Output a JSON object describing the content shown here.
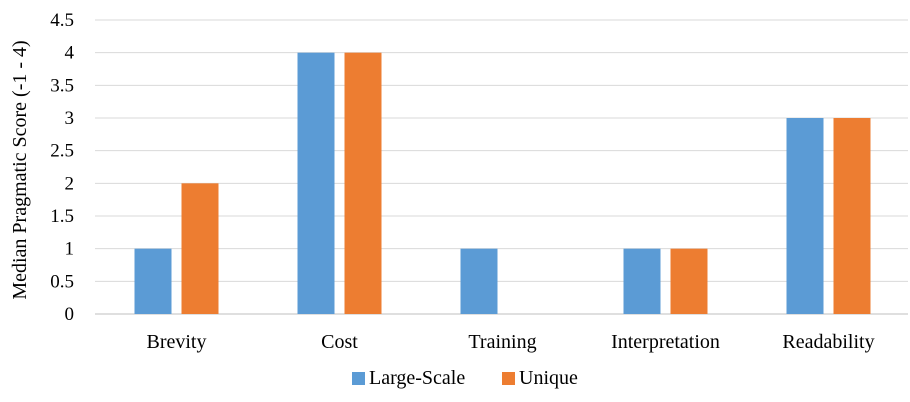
{
  "chart_data": {
    "type": "bar",
    "title": "",
    "xlabel": "",
    "ylabel": "Median Pragmatic Score (-1 - 4)",
    "ylim": [
      0,
      4.5
    ],
    "yticks": [
      "0",
      "0.5",
      "1",
      "1.5",
      "2",
      "2.5",
      "3",
      "3.5",
      "4",
      "4.5"
    ],
    "grid": true,
    "legend_position": "bottom",
    "categories": [
      "Brevity",
      "Cost",
      "Training",
      "Interpretation",
      "Readability"
    ],
    "series": [
      {
        "name": "Large-Scale",
        "color": "#5B9BD5",
        "values": [
          1,
          4,
          1,
          1,
          3
        ]
      },
      {
        "name": "Unique",
        "color": "#ED7D31",
        "values": [
          2,
          4,
          0,
          1,
          3
        ]
      }
    ]
  }
}
